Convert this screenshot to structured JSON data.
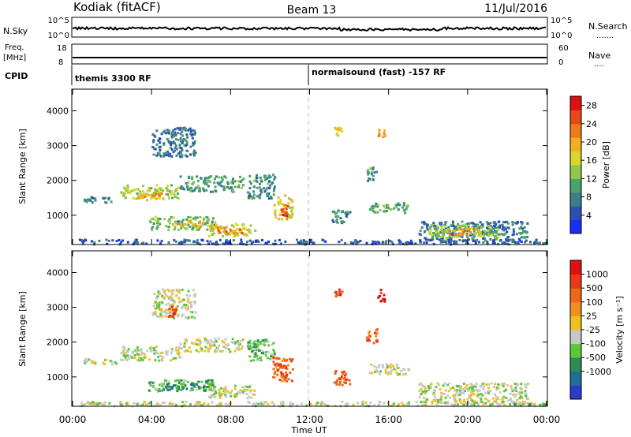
{
  "header": {
    "station": "Kodiak (fitACF)",
    "beam": "Beam 13",
    "date": "11/Jul/2016"
  },
  "top_panels": {
    "nsky_label": "N.Sky",
    "nsky_ticks": [
      "10^5",
      "10^0"
    ],
    "nsearch_label": "N.Search",
    "nsearch_ticks": [
      "10^5",
      "10^0"
    ],
    "freq_label": "Freq.",
    "freq_unit": "[MHz]",
    "freq_ticks": [
      "18",
      "8"
    ],
    "nave_label": "Nave",
    "nave_ticks": [
      "60",
      "0"
    ],
    "cpid_label": "CPID",
    "cpid_segments": [
      "themis 3300 RF",
      "normalsound (fast) -157 RF"
    ]
  },
  "chart_data": [
    {
      "type": "heatmap",
      "title": "",
      "xlabel": "Time UT",
      "ylabel": "Slant Range [km]",
      "xlim": [
        0,
        24
      ],
      "ylim": [
        180,
        4600
      ],
      "x_ticks": [
        "00:00",
        "04:00",
        "08:00",
        "12:00",
        "16:00",
        "20:00",
        "00:00"
      ],
      "y_ticks": [
        "1000",
        "2000",
        "3000",
        "4000"
      ],
      "colorbar": {
        "label": "Power [dB]",
        "ticks": [
          "4",
          "8",
          "12",
          "16",
          "20",
          "24",
          "28"
        ],
        "range": [
          0,
          30
        ],
        "colors": [
          "#1a2cff",
          "#2a50b0",
          "#3c7e8a",
          "#4aa46a",
          "#8ec84a",
          "#d6d82a",
          "#f2b020",
          "#ef7a1a",
          "#e84818",
          "#e01010"
        ]
      },
      "regions": [
        {
          "t0": 0.3,
          "t1": 24.0,
          "r0": 190,
          "r1": 330,
          "v": 4
        },
        {
          "t0": 0.5,
          "t1": 2.0,
          "r0": 1380,
          "r1": 1560,
          "v": 7
        },
        {
          "t0": 2.4,
          "t1": 5.4,
          "r0": 1500,
          "r1": 1900,
          "v": 15
        },
        {
          "t0": 3.3,
          "t1": 4.6,
          "r0": 1450,
          "r1": 1650,
          "v": 21
        },
        {
          "t0": 5.4,
          "t1": 8.6,
          "r0": 1700,
          "r1": 2150,
          "v": 9
        },
        {
          "t0": 3.8,
          "t1": 7.2,
          "r0": 600,
          "r1": 980,
          "v": 12
        },
        {
          "t0": 5.0,
          "t1": 6.6,
          "r0": 680,
          "r1": 860,
          "v": 20
        },
        {
          "t0": 6.8,
          "t1": 9.2,
          "r0": 420,
          "r1": 780,
          "v": 16
        },
        {
          "t0": 7.2,
          "t1": 8.6,
          "r0": 500,
          "r1": 700,
          "v": 23
        },
        {
          "t0": 8.8,
          "t1": 10.2,
          "r0": 1500,
          "r1": 2200,
          "v": 8
        },
        {
          "t0": 10.1,
          "t1": 11.1,
          "r0": 900,
          "r1": 1600,
          "v": 18
        },
        {
          "t0": 10.5,
          "t1": 10.9,
          "r0": 1000,
          "r1": 1350,
          "v": 27
        },
        {
          "t0": 4.0,
          "t1": 6.2,
          "r0": 2700,
          "r1": 3550,
          "v": 6
        },
        {
          "t0": 13.1,
          "t1": 14.0,
          "r0": 800,
          "r1": 1200,
          "v": 7
        },
        {
          "t0": 14.8,
          "t1": 15.4,
          "r0": 2000,
          "r1": 2400,
          "v": 9
        },
        {
          "t0": 15.0,
          "t1": 17.0,
          "r0": 1100,
          "r1": 1400,
          "v": 10
        },
        {
          "t0": 13.2,
          "t1": 13.6,
          "r0": 3300,
          "r1": 3550,
          "v": 17
        },
        {
          "t0": 15.4,
          "t1": 15.8,
          "r0": 3200,
          "r1": 3550,
          "v": 20
        },
        {
          "t0": 17.5,
          "t1": 23.0,
          "r0": 300,
          "r1": 850,
          "v": 6
        },
        {
          "t0": 18.0,
          "t1": 21.5,
          "r0": 380,
          "r1": 750,
          "v": 14
        },
        {
          "t0": 19.0,
          "t1": 20.6,
          "r0": 450,
          "r1": 650,
          "v": 21
        }
      ]
    },
    {
      "type": "heatmap",
      "title": "",
      "xlabel": "Time UT",
      "ylabel": "Slant Range [km]",
      "xlim": [
        0,
        24
      ],
      "ylim": [
        180,
        4600
      ],
      "x_ticks": [
        "00:00",
        "04:00",
        "08:00",
        "12:00",
        "16:00",
        "20:00",
        "00:00"
      ],
      "y_ticks": [
        "1000",
        "2000",
        "3000",
        "4000"
      ],
      "colorbar": {
        "label": "Velocity [m s⁻¹]",
        "ticks": [
          "1000",
          "500",
          "100",
          "25",
          "-25",
          "-100",
          "-500",
          "-1000"
        ],
        "colors": [
          "#2a3cc8",
          "#1e6e96",
          "#2c8a52",
          "#5ac83c",
          "#c8c8c8",
          "#f0c020",
          "#f09020",
          "#ec6818",
          "#e83818",
          "#e01010"
        ]
      },
      "regions": [
        {
          "t0": 0.3,
          "t1": 24.0,
          "r0": 190,
          "r1": 320,
          "v": 4
        },
        {
          "t0": 0.5,
          "t1": 2.2,
          "r0": 1380,
          "r1": 1560,
          "v": 4
        },
        {
          "t0": 2.4,
          "t1": 5.4,
          "r0": 1500,
          "r1": 1900,
          "v": 4
        },
        {
          "t0": 5.4,
          "t1": 8.6,
          "r0": 1750,
          "r1": 2150,
          "v": 4
        },
        {
          "t0": 3.8,
          "t1": 7.2,
          "r0": 620,
          "r1": 940,
          "v": 3
        },
        {
          "t0": 4.5,
          "t1": 6.8,
          "r0": 650,
          "r1": 850,
          "v": 2
        },
        {
          "t0": 6.8,
          "t1": 9.2,
          "r0": 420,
          "r1": 780,
          "v": 4
        },
        {
          "t0": 8.8,
          "t1": 10.2,
          "r0": 1450,
          "r1": 2100,
          "v": 3
        },
        {
          "t0": 10.1,
          "t1": 11.1,
          "r0": 900,
          "r1": 1600,
          "v": 7
        },
        {
          "t0": 10.4,
          "t1": 10.9,
          "r0": 1000,
          "r1": 1400,
          "v": 8
        },
        {
          "t0": 4.0,
          "t1": 6.2,
          "r0": 2700,
          "r1": 3550,
          "v": 4
        },
        {
          "t0": 4.8,
          "t1": 5.3,
          "r0": 2750,
          "r1": 3100,
          "v": 8
        },
        {
          "t0": 13.1,
          "t1": 14.0,
          "r0": 800,
          "r1": 1200,
          "v": 7
        },
        {
          "t0": 15.0,
          "t1": 17.0,
          "r0": 1100,
          "r1": 1400,
          "v": 4
        },
        {
          "t0": 14.8,
          "t1": 15.4,
          "r0": 2000,
          "r1": 2400,
          "v": 7
        },
        {
          "t0": 13.2,
          "t1": 13.6,
          "r0": 3300,
          "r1": 3550,
          "v": 8
        },
        {
          "t0": 15.4,
          "t1": 15.8,
          "r0": 3200,
          "r1": 3550,
          "v": 9
        },
        {
          "t0": 17.5,
          "t1": 23.0,
          "r0": 300,
          "r1": 850,
          "v": 4
        },
        {
          "t0": 22.0,
          "t1": 24.0,
          "r0": 190,
          "r1": 260,
          "v": 3
        }
      ]
    }
  ]
}
